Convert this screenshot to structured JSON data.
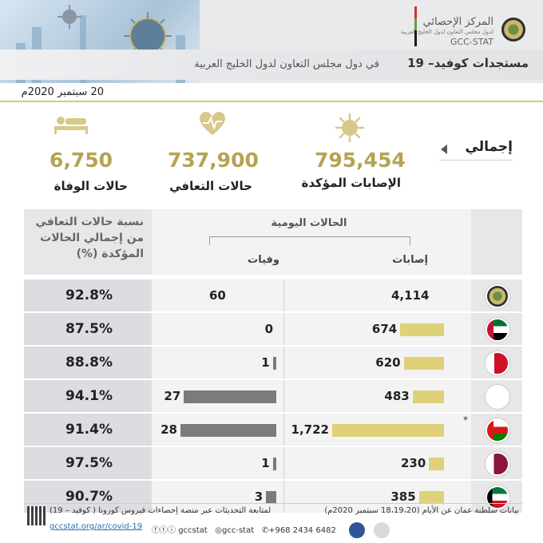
{
  "header": {
    "title": "مستجدات كوفيد– 19",
    "subtitle": "في دول مجلس التعاون لدول الخليج العربية",
    "logo_name_ar": "المركز الإحصائي",
    "logo_sub_ar": "لدول مجلس التعاون لدول الخليج العربية",
    "logo_name_en": "GCC-STAT"
  },
  "date": "20 سبتمبر 2020م",
  "totals": {
    "label": "إجمالي",
    "confirmed": {
      "value": "795,454",
      "label": "الإصابات المؤكدة",
      "icon": "virus-icon"
    },
    "recovered": {
      "value": "737,900",
      "label": "حالات التعافي",
      "icon": "heartbeat-icon"
    },
    "deaths": {
      "value": "6,750",
      "label": "حالات الوفاة",
      "icon": "patient-bed-icon"
    }
  },
  "table": {
    "daily_header": "الحالات اليومية",
    "cases_header": "إصابات",
    "deaths_header": "وفيات",
    "recovery_header": "نسبة حالات التعافي من إجمالي الحالات المؤكدة (%)"
  },
  "chart_data": {
    "type": "bar",
    "categories": [
      "GCC",
      "UAE",
      "Bahrain",
      "Saudi Arabia",
      "Oman",
      "Qatar",
      "Kuwait"
    ],
    "series": [
      {
        "name": "إصابات",
        "values": [
          4114,
          674,
          620,
          483,
          1722,
          230,
          385
        ]
      },
      {
        "name": "وفيات",
        "values": [
          60,
          0,
          1,
          27,
          28,
          1,
          3
        ]
      }
    ],
    "labels": {
      "cases": [
        "4,114",
        "674",
        "620",
        "483",
        "1,722",
        "230",
        "385"
      ],
      "deaths": [
        "60",
        "0",
        "1",
        "27",
        "28",
        "1",
        "3"
      ]
    },
    "recovery_pct": [
      "92.8%",
      "87.5%",
      "88.8%",
      "94.1%",
      "91.4%",
      "97.5%",
      "90.7%"
    ],
    "colors": {
      "cases": "#dfd178",
      "deaths": "#7c7a7a",
      "value_text": "#b5a351"
    }
  },
  "footer": {
    "note": "بيانات سلطنة عمان عن الأيام (18،19،20 سبتمبر 2020م)",
    "star": "*",
    "follow": "لمتابعة التحديثات عبر منصة إحصاءات فيروس كورونا ( كوفيد – 19)",
    "url": "gccstat.org/ar/covid-19",
    "phone": "+968 2434 6482",
    "handle1": "gcc-stat",
    "handle2": "gccstat"
  }
}
